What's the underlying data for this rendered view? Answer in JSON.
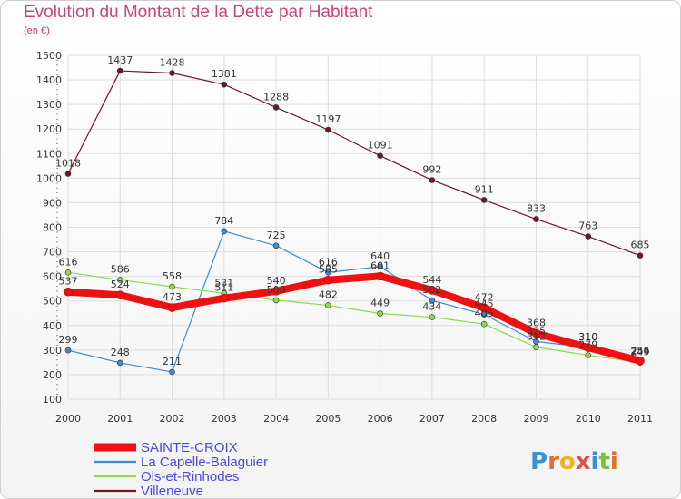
{
  "chart_data": {
    "type": "line",
    "title": "Evolution du Montant de la Dette par Habitant",
    "subtitle": "(en €)",
    "x": [
      "2000",
      "2001",
      "2002",
      "2003",
      "2004",
      "2005",
      "2006",
      "2007",
      "2008",
      "2009",
      "2010",
      "2011"
    ],
    "ylim": [
      100,
      1500
    ],
    "yticks": [
      100,
      200,
      300,
      400,
      500,
      600,
      700,
      800,
      900,
      1000,
      1100,
      1200,
      1300,
      1400,
      1500
    ],
    "grid": true,
    "legend_position": "bottom-left",
    "series": [
      {
        "name": "Villeneuve",
        "color": "#6b1a25",
        "width": 1.2,
        "values": [
          1018,
          1437,
          1428,
          1381,
          1288,
          1197,
          1091,
          992,
          911,
          833,
          763,
          685
        ]
      },
      {
        "name": "La Capelle-Balaguier",
        "color": "#3d8dd0",
        "width": 1.2,
        "values": [
          299,
          248,
          211,
          784,
          725,
          616,
          640,
          502,
          445,
          335,
          310,
          254
        ]
      },
      {
        "name": "Ols-et-Rinhodes",
        "color": "#8fd851",
        "width": 1.2,
        "values": [
          616,
          586,
          558,
          531,
          503,
          482,
          449,
          434,
          406,
          312,
          279,
          249
        ]
      },
      {
        "name": "SAINTE-CROIX",
        "color": "#ee1111",
        "width": 8,
        "values": [
          537,
          524,
          473,
          511,
          540,
          585,
          601,
          544,
          472,
          368,
          310,
          256
        ]
      }
    ],
    "legend_order": [
      "SAINTE-CROIX",
      "La Capelle-Balaguier",
      "Ols-et-Rinhodes",
      "Villeneuve"
    ]
  },
  "logo": {
    "text": "Proxiti"
  }
}
